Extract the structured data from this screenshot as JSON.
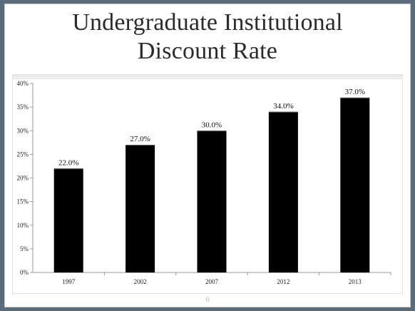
{
  "slide": {
    "title_line1": "Undergraduate Institutional",
    "title_line2": "Discount Rate",
    "page_number": "6"
  },
  "chart_data": {
    "type": "bar",
    "title": "Undergraduate Institutional Discount Rate",
    "categories": [
      "1997",
      "2002",
      "2007",
      "2012",
      "2013"
    ],
    "values": [
      22.0,
      27.0,
      30.0,
      34.0,
      37.0
    ],
    "data_labels": [
      "22.0%",
      "27.0%",
      "30.0%",
      "34.0%",
      "37.0%"
    ],
    "y_ticks": [
      0,
      5,
      10,
      15,
      20,
      25,
      30,
      35,
      40
    ],
    "y_tick_labels": [
      "0%",
      "5%",
      "10%",
      "15%",
      "20%",
      "25%",
      "30%",
      "35%",
      "40%"
    ],
    "ylim": [
      0,
      40
    ],
    "xlabel": "",
    "ylabel": "",
    "grid": false,
    "legend": "none",
    "bar_color": "#000000"
  }
}
